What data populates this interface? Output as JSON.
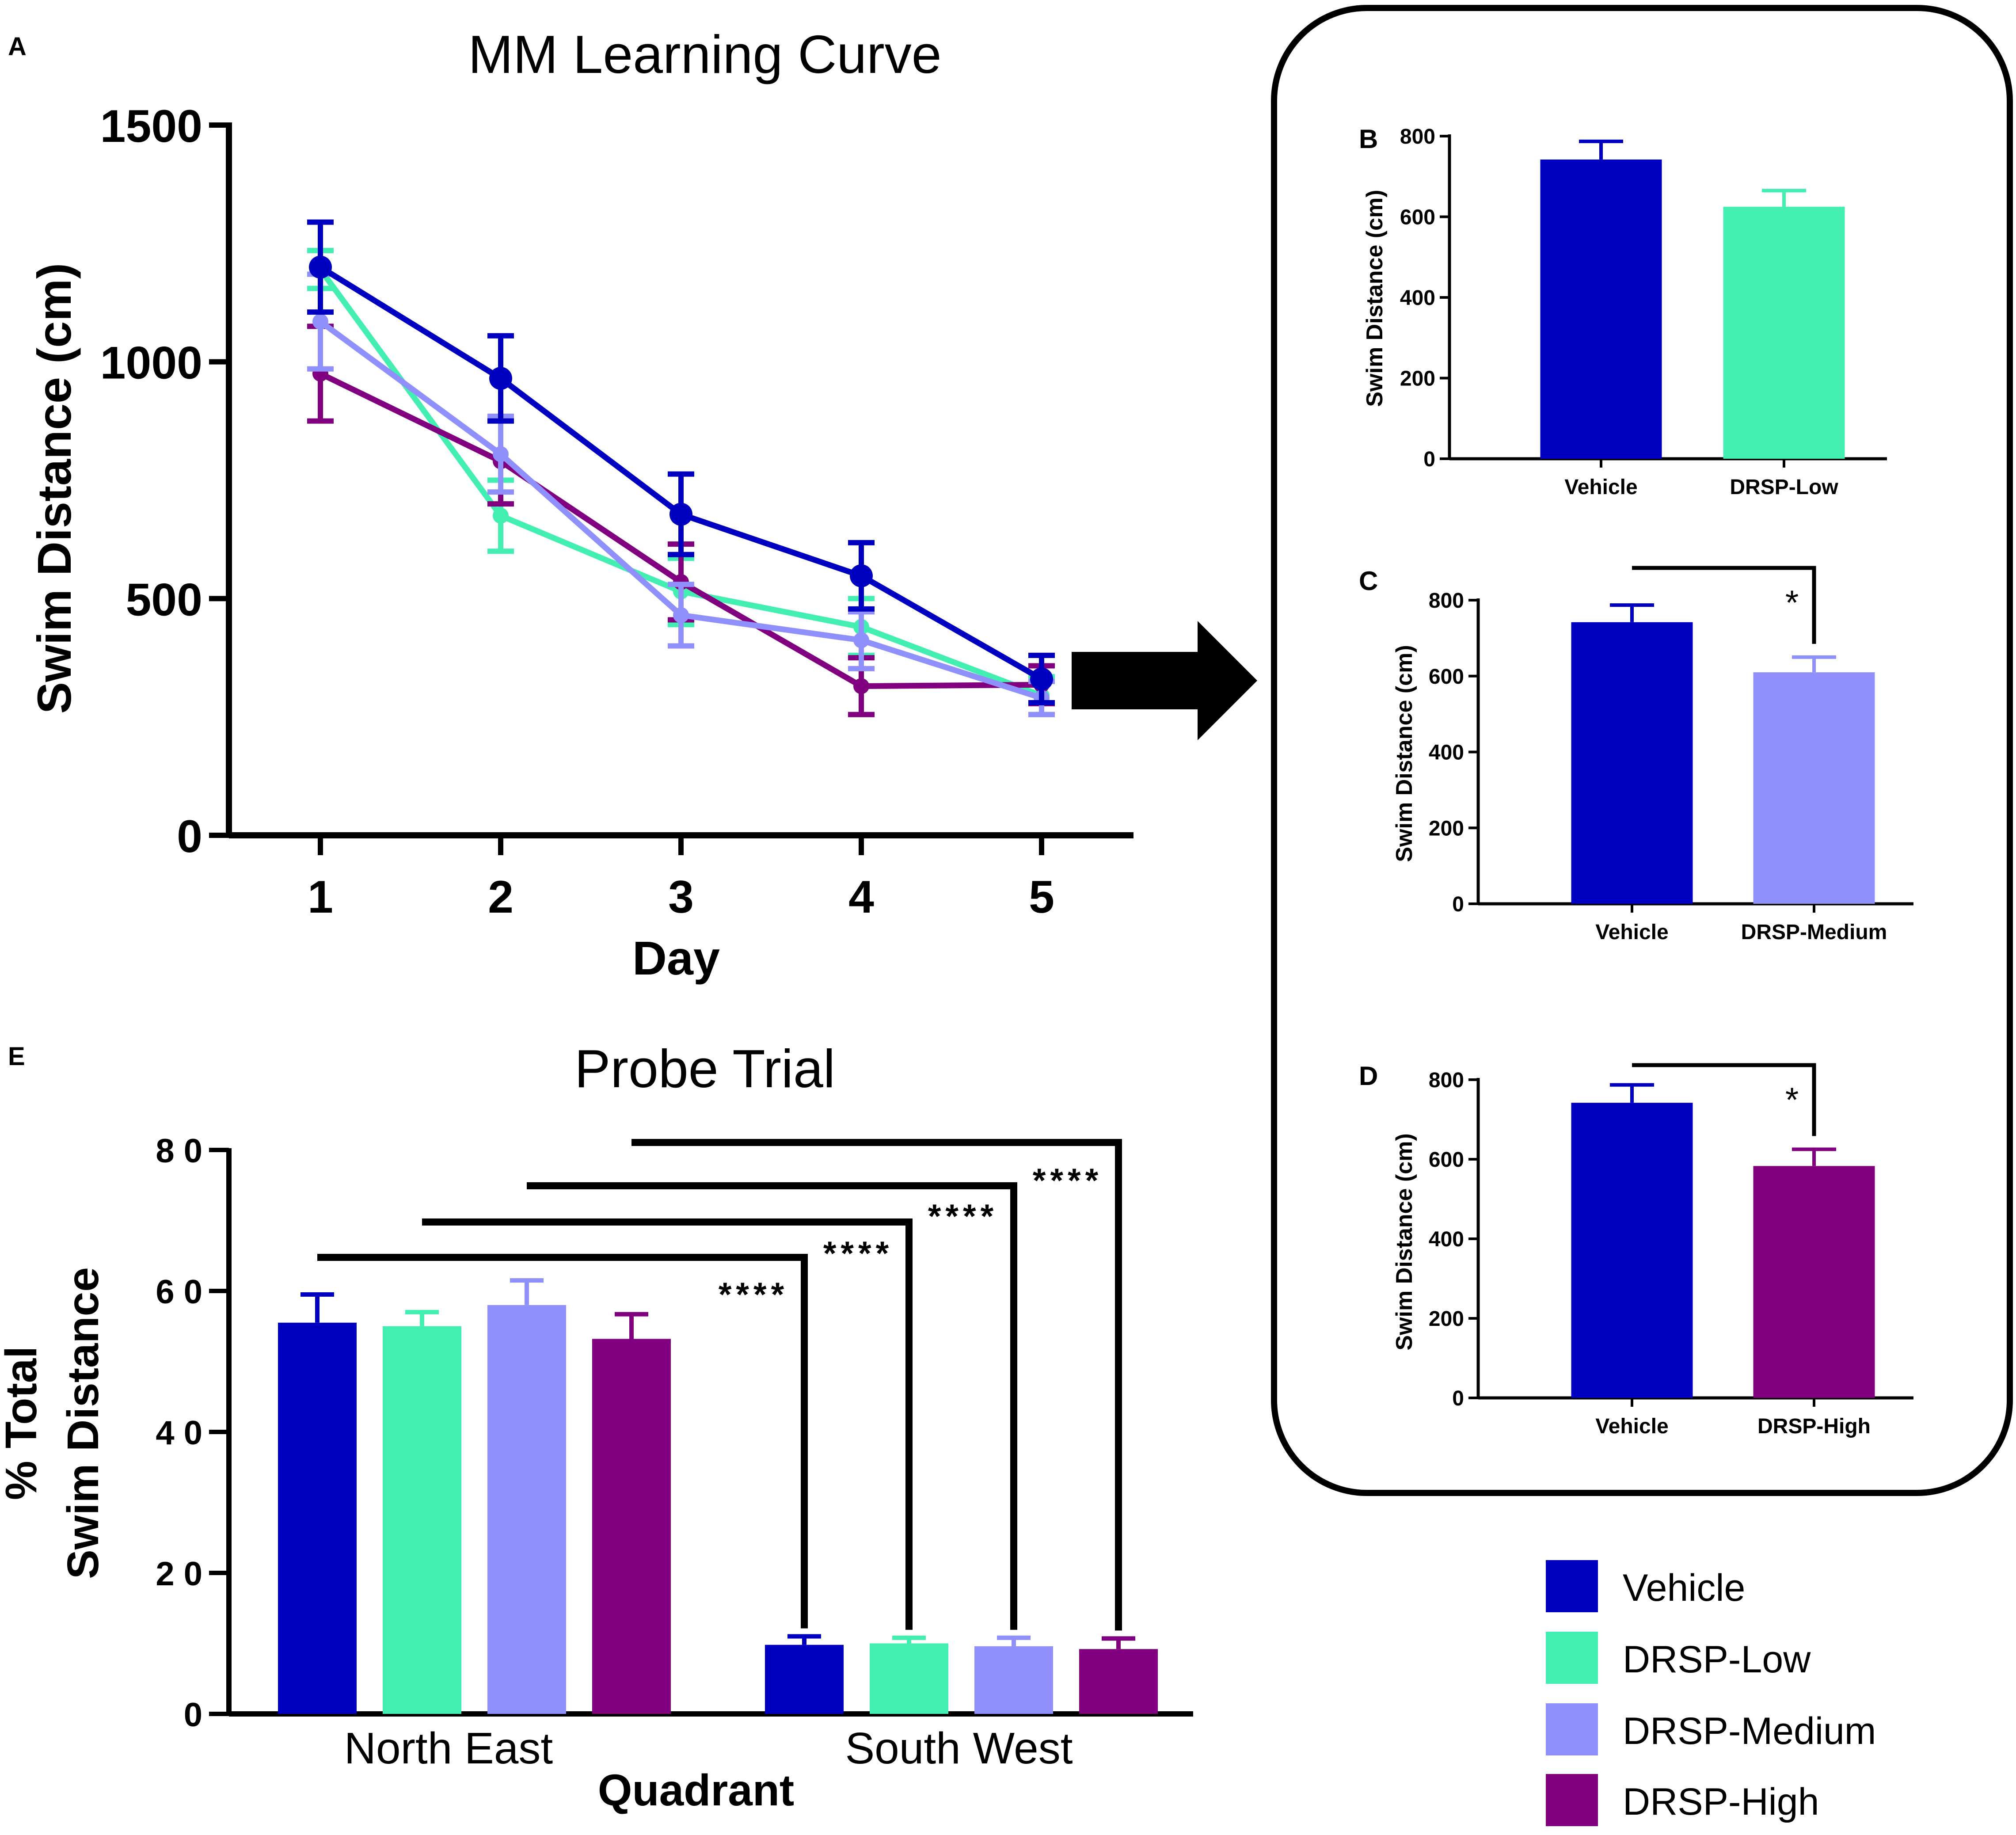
{
  "colors": {
    "vehicle": "#0000C0",
    "low": "#42EFB0",
    "medium": "#9090FC",
    "high": "#800080",
    "axis": "#000000"
  },
  "groups": [
    "Vehicle",
    "DRSP-Low",
    "DRSP-Medium",
    "DRSP-High"
  ],
  "legend": {
    "items": [
      {
        "label": "Vehicle",
        "color": "#0000C0"
      },
      {
        "label": "DRSP-Low",
        "color": "#42EFB0"
      },
      {
        "label": "DRSP-Medium",
        "color": "#9090FC"
      },
      {
        "label": "DRSP-High",
        "color": "#800080"
      }
    ]
  },
  "chart_data": [
    {
      "panel": "A",
      "type": "line",
      "title": "MM Learning Curve",
      "xlabel": "Day",
      "ylabel": "Swim Distance (cm)",
      "x": [
        1,
        2,
        3,
        4,
        5
      ],
      "xticks": [
        "1",
        "2",
        "3",
        "4",
        "5"
      ],
      "ylim": [
        0,
        1500
      ],
      "yticks": [
        0,
        500,
        1000,
        1500
      ],
      "series": [
        {
          "name": "Vehicle",
          "color": "#0000C0",
          "values": [
            1200,
            965,
            678,
            548,
            330
          ],
          "errors": [
            95,
            90,
            85,
            70,
            50
          ]
        },
        {
          "name": "DRSP-Low",
          "color": "#42EFB0",
          "values": [
            1195,
            675,
            515,
            440,
            295
          ],
          "errors": [
            40,
            75,
            70,
            60,
            40
          ]
        },
        {
          "name": "DRSP-Medium",
          "color": "#9090FC",
          "values": [
            1085,
            805,
            465,
            412,
            290
          ],
          "errors": [
            100,
            80,
            65,
            60,
            35
          ]
        },
        {
          "name": "DRSP-High",
          "color": "#800080",
          "values": [
            975,
            790,
            535,
            315,
            318
          ],
          "errors": [
            100,
            90,
            80,
            60,
            40
          ]
        }
      ]
    },
    {
      "panel": "B",
      "type": "bar",
      "categories": [
        "Vehicle",
        "DRSP-Low"
      ],
      "colors": [
        "#0000C0",
        "#42EFB0"
      ],
      "values": [
        742,
        625
      ],
      "errors": [
        45,
        40
      ],
      "ylabel": "Swim Distance  (cm)",
      "ylim": [
        0,
        800
      ],
      "yticks": [
        0,
        200,
        400,
        600,
        800
      ],
      "significance": []
    },
    {
      "panel": "C",
      "type": "bar",
      "categories": [
        "Vehicle",
        "DRSP-Medium"
      ],
      "colors": [
        "#0000C0",
        "#9090FC"
      ],
      "values": [
        742,
        610
      ],
      "errors": [
        45,
        40
      ],
      "ylabel": "Swim Distance  (cm)",
      "ylim": [
        0,
        800
      ],
      "yticks": [
        0,
        200,
        400,
        600,
        800
      ],
      "significance": [
        {
          "from": 0,
          "to": 1,
          "label": "*"
        }
      ]
    },
    {
      "panel": "D",
      "type": "bar",
      "categories": [
        "Vehicle",
        "DRSP-High"
      ],
      "colors": [
        "#0000C0",
        "#800080"
      ],
      "values": [
        742,
        583
      ],
      "errors": [
        45,
        42
      ],
      "ylabel": "Swim Distance  (cm)",
      "ylim": [
        0,
        800
      ],
      "yticks": [
        0,
        200,
        400,
        600,
        800
      ],
      "significance": [
        {
          "from": 0,
          "to": 1,
          "label": "*"
        }
      ]
    },
    {
      "panel": "E",
      "type": "bar",
      "title": "Probe Trial",
      "xlabel": "Quadrant",
      "ylabel_lines": [
        "% Total",
        "Swim Distance"
      ],
      "categories": [
        "North East",
        "South West"
      ],
      "ylim": [
        0,
        80
      ],
      "yticks": [
        "0",
        "2 0",
        "4 0",
        "6 0",
        "8 0"
      ],
      "series": [
        {
          "name": "Vehicle",
          "color": "#0000C0",
          "values": [
            55.5,
            9.8
          ],
          "errors": [
            4,
            1.2
          ]
        },
        {
          "name": "DRSP-Low",
          "color": "#42EFB0",
          "values": [
            55.0,
            10.0
          ],
          "errors": [
            2,
            0.8
          ]
        },
        {
          "name": "DRSP-Medium",
          "color": "#9090FC",
          "values": [
            58.0,
            9.6
          ],
          "errors": [
            3.5,
            1.2
          ]
        },
        {
          "name": "DRSP-High",
          "color": "#800080",
          "values": [
            53.2,
            9.2
          ],
          "errors": [
            3.5,
            1.5
          ]
        }
      ],
      "significance": [
        {
          "series": 0,
          "label": "****"
        },
        {
          "series": 1,
          "label": "****"
        },
        {
          "series": 2,
          "label": "****"
        },
        {
          "series": 3,
          "label": "****"
        }
      ]
    }
  ]
}
